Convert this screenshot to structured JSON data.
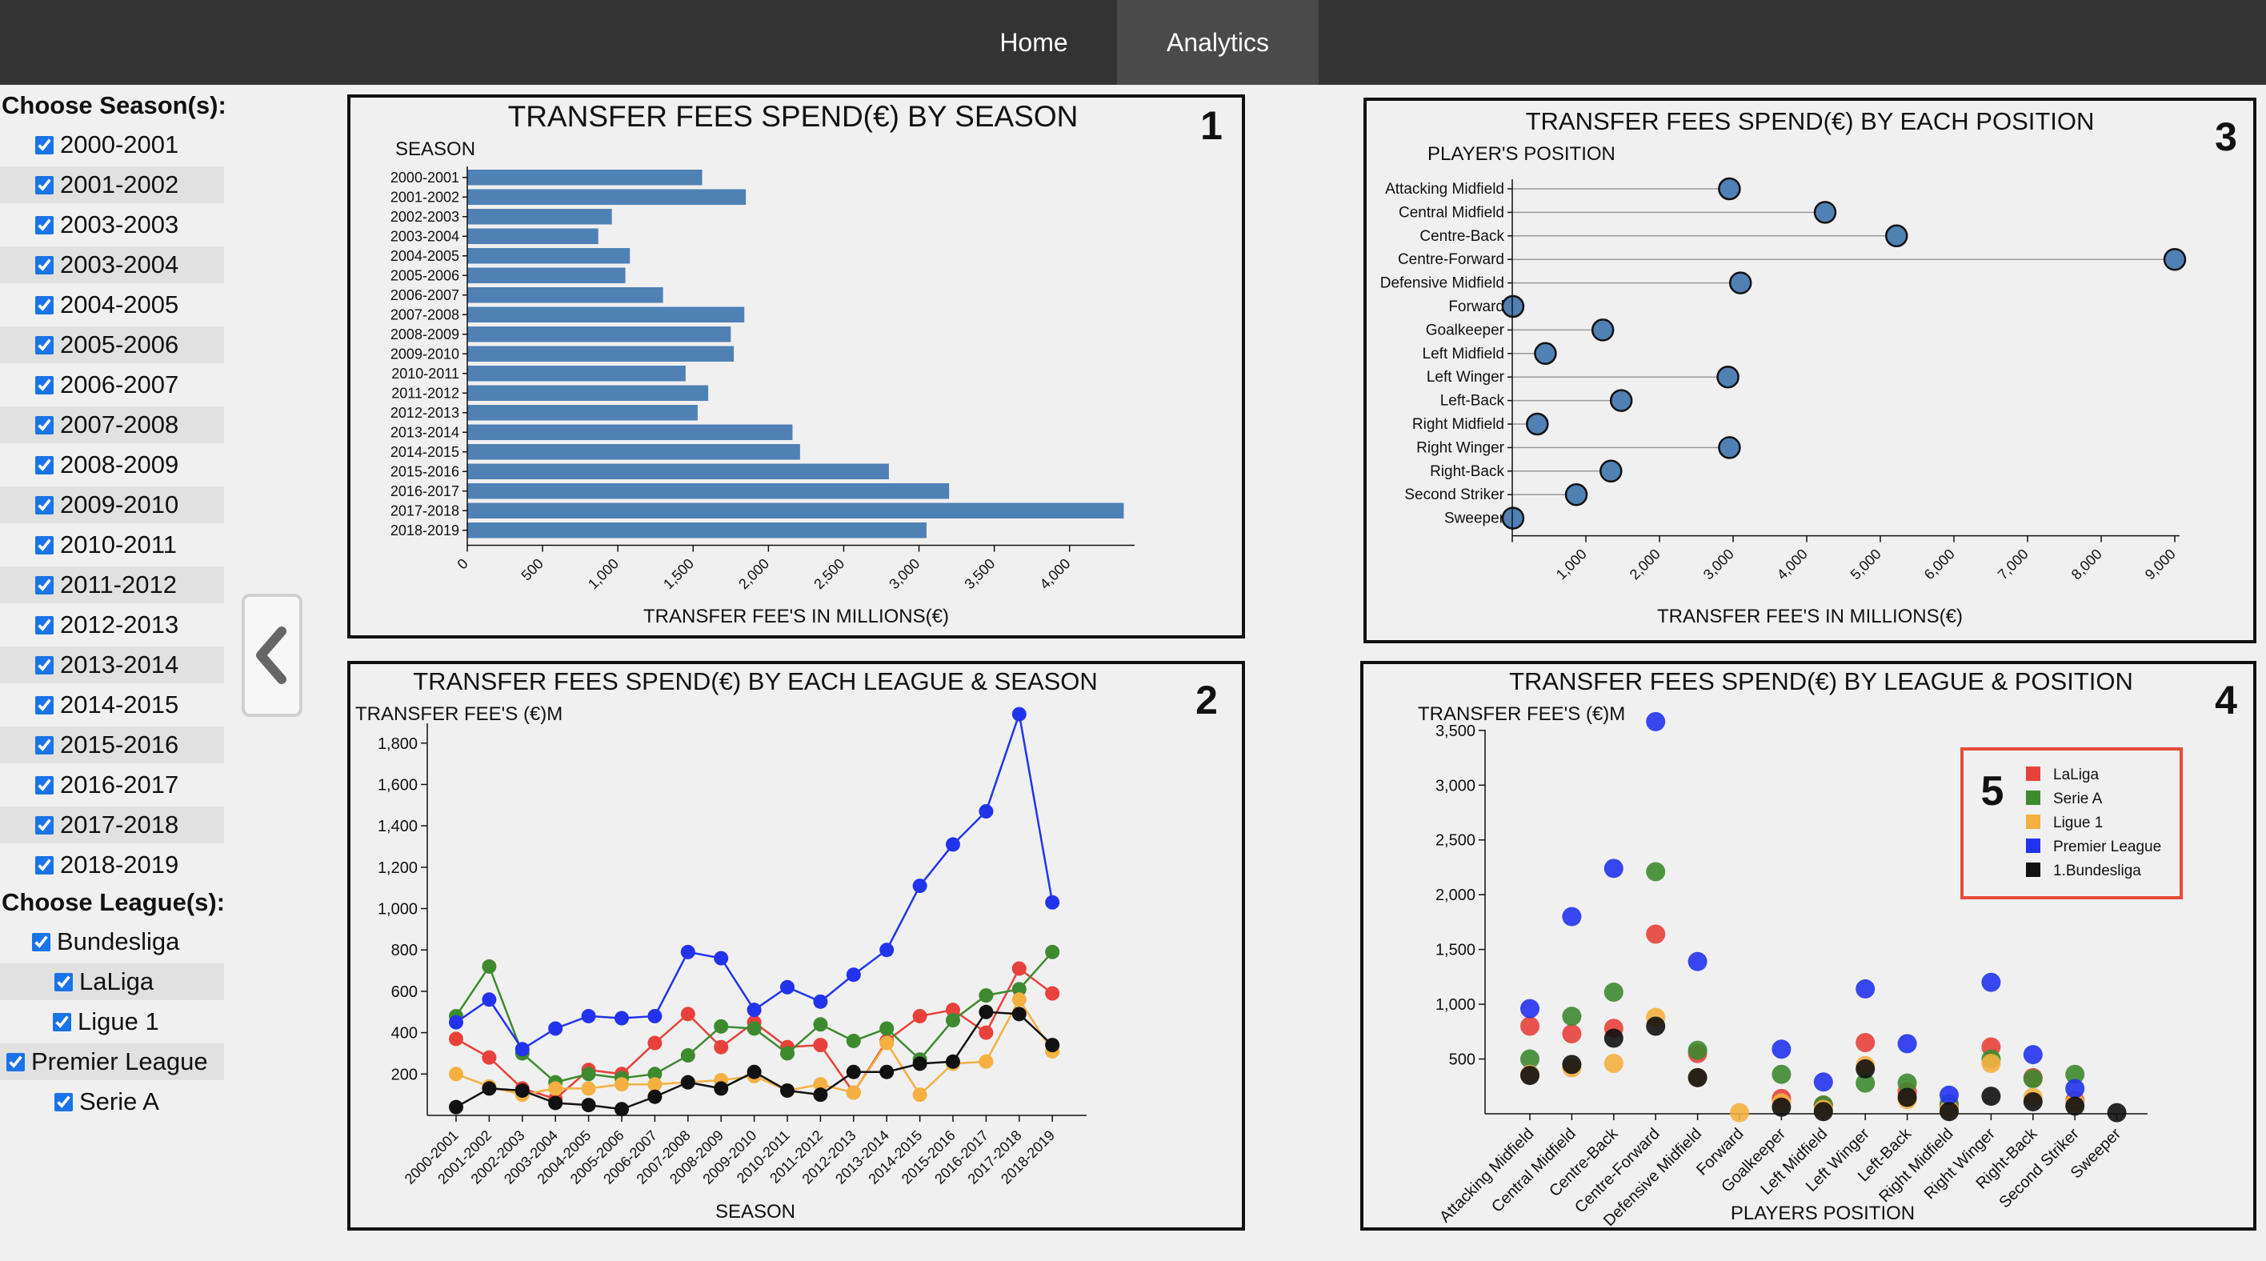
{
  "nav": {
    "home": "Home",
    "analytics": "Analytics"
  },
  "sidebar": {
    "seasons_title": "Choose Season(s):",
    "seasons": [
      "2000-2001",
      "2001-2002",
      "2003-2003",
      "2003-2004",
      "2004-2005",
      "2005-2006",
      "2006-2007",
      "2007-2008",
      "2008-2009",
      "2009-2010",
      "2010-2011",
      "2011-2012",
      "2012-2013",
      "2013-2014",
      "2014-2015",
      "2015-2016",
      "2016-2017",
      "2017-2018",
      "2018-2019"
    ],
    "leagues_title": "Choose League(s):",
    "leagues": [
      "Bundesliga",
      "LaLiga",
      "Ligue 1",
      "Premier League",
      "Serie A"
    ]
  },
  "collapse_icon": "chevron-left-icon",
  "colors": {
    "bar": "#4f81b5",
    "laliga": "#e8413b",
    "seriea": "#3d8a2f",
    "ligue1": "#f5b041",
    "premier": "#2233ee",
    "bundesliga": "#111111",
    "annotation": "#e74c3c"
  },
  "panel_numbers": [
    "1",
    "2",
    "3",
    "4",
    "5"
  ],
  "chart_data": [
    {
      "id": "season",
      "type": "bar",
      "title": "TRANSFER FEES SPEND(€) BY SEASON",
      "ylabel": "SEASON",
      "xlabel": "TRANSFER FEE'S IN MILLIONS(€)",
      "categories": [
        "2000-2001",
        "2001-2002",
        "2002-2003",
        "2003-2004",
        "2004-2005",
        "2005-2006",
        "2006-2007",
        "2007-2008",
        "2008-2009",
        "2009-2010",
        "2010-2011",
        "2011-2012",
        "2012-2013",
        "2013-2014",
        "2014-2015",
        "2015-2016",
        "2016-2017",
        "2017-2018",
        "2018-2019"
      ],
      "values": [
        1560,
        1850,
        960,
        870,
        1080,
        1050,
        1300,
        1840,
        1750,
        1770,
        1450,
        1600,
        1530,
        2160,
        2210,
        2800,
        3200,
        4360,
        3050
      ],
      "xticks": [
        0,
        500,
        1000,
        1500,
        2000,
        2500,
        3000,
        3500,
        4000
      ],
      "xtick_labels": [
        "0",
        "500",
        "1,000",
        "1,500",
        "2,000",
        "2,500",
        "3,000",
        "3,500",
        "4,000"
      ],
      "xlim": [
        0,
        4400
      ]
    },
    {
      "id": "league_season",
      "type": "line",
      "title": "TRANSFER FEES SPEND(€) BY EACH LEAGUE & SEASON",
      "ylabel": "TRANSFER FEE'S (€)M",
      "xlabel": "SEASON",
      "x": [
        "2000-2001",
        "2001-2002",
        "2002-2003",
        "2003-2004",
        "2004-2005",
        "2005-2006",
        "2006-2007",
        "2007-2008",
        "2008-2009",
        "2009-2010",
        "2010-2011",
        "2011-2012",
        "2012-2013",
        "2013-2014",
        "2014-2015",
        "2015-2016",
        "2016-2017",
        "2017-2018",
        "2018-2019"
      ],
      "ylim": [
        0,
        1950
      ],
      "yticks": [
        200,
        400,
        600,
        800,
        1000,
        1200,
        1400,
        1600,
        1800
      ],
      "ytick_labels": [
        "200",
        "400",
        "600",
        "800",
        "1,000",
        "1,200",
        "1,400",
        "1,600",
        "1,800"
      ],
      "series": [
        {
          "name": "LaLiga",
          "color": "#e8413b",
          "values": [
            370,
            280,
            130,
            80,
            220,
            200,
            350,
            490,
            330,
            450,
            330,
            340,
            110,
            360,
            480,
            510,
            400,
            710,
            590
          ]
        },
        {
          "name": "Serie A",
          "color": "#3d8a2f",
          "values": [
            480,
            720,
            300,
            160,
            200,
            180,
            200,
            290,
            430,
            420,
            300,
            440,
            360,
            420,
            270,
            460,
            580,
            610,
            790
          ]
        },
        {
          "name": "Ligue 1",
          "color": "#f5b041",
          "values": [
            200,
            140,
            100,
            130,
            130,
            150,
            150,
            160,
            170,
            190,
            120,
            150,
            110,
            350,
            100,
            250,
            260,
            560,
            310
          ]
        },
        {
          "name": "Premier League",
          "color": "#2233ee",
          "values": [
            450,
            560,
            320,
            420,
            480,
            470,
            480,
            790,
            760,
            510,
            620,
            550,
            680,
            800,
            1110,
            1310,
            1470,
            1940,
            1030
          ]
        },
        {
          "name": "1.Bundesliga",
          "color": "#111111",
          "values": [
            40,
            130,
            120,
            60,
            50,
            30,
            90,
            160,
            130,
            210,
            120,
            100,
            210,
            210,
            250,
            260,
            500,
            490,
            340
          ]
        }
      ]
    },
    {
      "id": "position",
      "type": "scatter",
      "title": "TRANSFER FEES SPEND(€) BY EACH POSITION",
      "ylabel": "PLAYER'S POSITION",
      "xlabel": "TRANSFER FEE'S IN MILLIONS(€)",
      "categories": [
        "Attacking Midfield",
        "Central Midfield",
        "Centre-Back",
        "Centre-Forward",
        "Defensive Midfield",
        "Forward",
        "Goalkeeper",
        "Left Midfield",
        "Left Winger",
        "Left-Back",
        "Right Midfield",
        "Right Winger",
        "Right-Back",
        "Second Striker",
        "Sweeper"
      ],
      "values": [
        2950,
        4250,
        5220,
        9000,
        3100,
        10,
        1230,
        450,
        2930,
        1480,
        340,
        2950,
        1340,
        870,
        10
      ],
      "xticks": [
        1000,
        2000,
        3000,
        4000,
        5000,
        6000,
        7000,
        8000,
        9000
      ],
      "xtick_labels": [
        "1,000",
        "2,000",
        "3,000",
        "4,000",
        "5,000",
        "6,000",
        "7,000",
        "8,000",
        "9,000"
      ],
      "xlim": [
        0,
        9000
      ]
    },
    {
      "id": "league_position",
      "type": "scatter",
      "title": "TRANSFER FEES SPEND(€) BY LEAGUE & POSITION",
      "ylabel": "TRANSFER FEE'S (€)M",
      "xlabel": "PLAYERS POSITION",
      "categories": [
        "Attacking Midfield",
        "Central Midfield",
        "Centre-Back",
        "Centre-Forward",
        "Defensive Midfield",
        "Forward",
        "Goalkeeper",
        "Left Midfield",
        "Left Winger",
        "Left-Back",
        "Right Midfield",
        "Right Winger",
        "Right-Back",
        "Second Striker",
        "Sweeper"
      ],
      "ylim": [
        0,
        3550
      ],
      "yticks": [
        500,
        1000,
        1500,
        2000,
        2500,
        3000,
        3500
      ],
      "ytick_labels": [
        "500",
        "1,000",
        "1,500",
        "2,000",
        "2,500",
        "3,000",
        "3,500"
      ],
      "legend_position": "top-right",
      "series": [
        {
          "name": "LaLiga",
          "color": "#e8413b",
          "values": [
            800,
            730,
            780,
            1640,
            550,
            null,
            140,
            80,
            650,
            200,
            60,
            610,
            330,
            120,
            null
          ]
        },
        {
          "name": "Serie A",
          "color": "#3d8a2f",
          "values": [
            500,
            890,
            1110,
            2210,
            580,
            null,
            360,
            80,
            280,
            280,
            90,
            500,
            320,
            360,
            null
          ]
        },
        {
          "name": "Ligue 1",
          "color": "#f5b041",
          "values": [
            360,
            420,
            460,
            880,
            330,
            10,
            100,
            40,
            440,
            130,
            40,
            460,
            150,
            100,
            null
          ]
        },
        {
          "name": "Premier League",
          "color": "#2233ee",
          "values": [
            960,
            1800,
            2240,
            3580,
            1390,
            null,
            590,
            290,
            1140,
            640,
            170,
            1200,
            540,
            230,
            null
          ]
        },
        {
          "name": "1.Bundesliga",
          "color": "#111111",
          "values": [
            350,
            450,
            690,
            800,
            330,
            null,
            60,
            20,
            410,
            150,
            20,
            160,
            110,
            70,
            10
          ]
        }
      ]
    }
  ]
}
